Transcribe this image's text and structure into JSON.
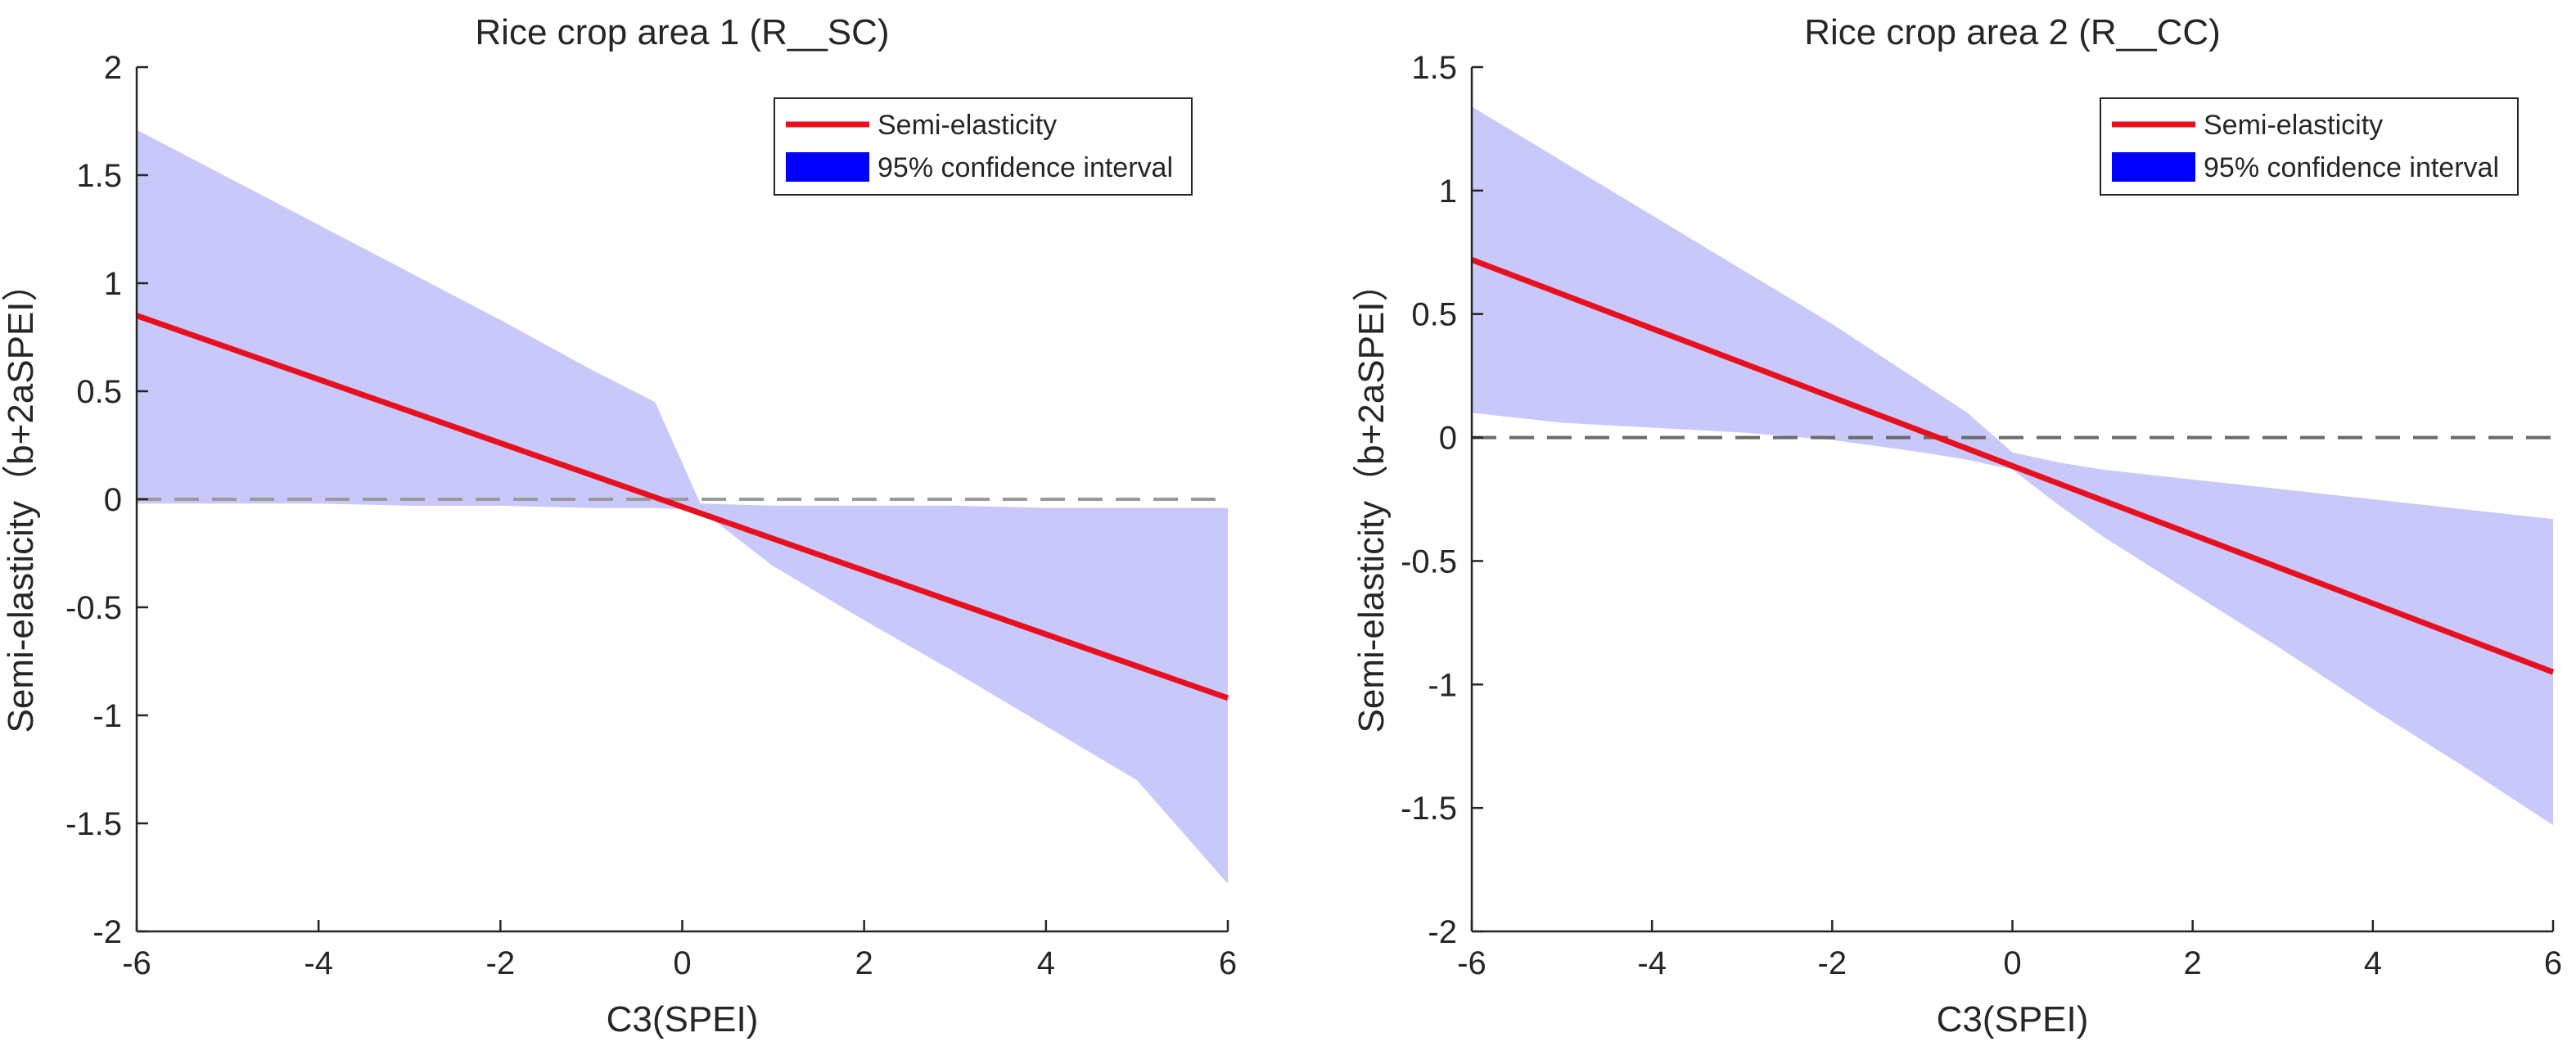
{
  "chart_data": [
    {
      "type": "line",
      "title": "Rice crop area 1 (R__SC)",
      "xlabel": "C3(SPEI)",
      "ylabel": "Semi-elasticity（b+2aSPEI）",
      "xlim": [
        -6,
        6
      ],
      "ylim": [
        -2,
        2
      ],
      "xticks": [
        -6,
        -4,
        -2,
        0,
        2,
        4,
        6
      ],
      "yticks": [
        -2,
        -1.5,
        -1,
        -0.5,
        0,
        0.5,
        1,
        1.5,
        2
      ],
      "xtick_labels": [
        "-6",
        "-4",
        "-2",
        "0",
        "2",
        "4",
        "6"
      ],
      "ytick_labels": [
        "-2",
        "-1.5",
        "-1",
        "-0.5",
        "0",
        "0.5",
        "1",
        "1.5",
        "2"
      ],
      "legend_position": "top-right",
      "series": [
        {
          "name": "Semi-elasticity",
          "kind": "line",
          "color": "#e8101e",
          "x": [
            -6,
            6
          ],
          "y": [
            0.85,
            -0.92
          ]
        },
        {
          "name": "95% confidence interval",
          "kind": "band",
          "color": "#0000ff",
          "fill": "#c8c8fb",
          "x": [
            -6,
            -5,
            -4,
            -3,
            -2,
            -1,
            -0.3,
            0.2,
            1,
            2,
            3,
            4,
            5,
            6
          ],
          "upper": [
            1.71,
            1.49,
            1.27,
            1.05,
            0.83,
            0.6,
            0.45,
            -0.02,
            -0.03,
            -0.03,
            -0.03,
            -0.04,
            -0.04,
            -0.04
          ],
          "lower": [
            -0.02,
            -0.02,
            -0.02,
            -0.03,
            -0.03,
            -0.04,
            -0.04,
            -0.05,
            -0.31,
            -0.56,
            -0.8,
            -1.05,
            -1.3,
            -1.78
          ]
        }
      ],
      "reference_line": {
        "y": 0,
        "style": "dashed",
        "color": "#9a9a9a"
      }
    },
    {
      "type": "line",
      "title": "Rice crop area 2 (R__CC)",
      "xlabel": "C3(SPEI)",
      "ylabel": "Semi-elasticity（b+2aSPEI）",
      "xlim": [
        -6,
        6
      ],
      "ylim": [
        -2,
        1.5
      ],
      "xticks": [
        -6,
        -4,
        -2,
        0,
        2,
        4,
        6
      ],
      "yticks": [
        -2,
        -1.5,
        -1,
        -0.5,
        0,
        0.5,
        1,
        1.5
      ],
      "xtick_labels": [
        "-6",
        "-4",
        "-2",
        "0",
        "2",
        "4",
        "6"
      ],
      "ytick_labels": [
        "-2",
        "-1.5",
        "-1",
        "-0.5",
        "0",
        "0.5",
        "1",
        "1.5"
      ],
      "legend_position": "top-right",
      "series": [
        {
          "name": "Semi-elasticity",
          "kind": "line",
          "color": "#e8101e",
          "x": [
            -6,
            6
          ],
          "y": [
            0.72,
            -0.95
          ]
        },
        {
          "name": "95% confidence interval",
          "kind": "band",
          "color": "#0000ff",
          "fill": "#c8c8fb",
          "x": [
            -6,
            -5,
            -4,
            -3,
            -2,
            -1,
            -0.5,
            0,
            0.5,
            1,
            2,
            3,
            4,
            5,
            6
          ],
          "upper": [
            1.34,
            1.12,
            0.9,
            0.68,
            0.46,
            0.22,
            0.1,
            -0.06,
            -0.1,
            -0.13,
            -0.17,
            -0.21,
            -0.25,
            -0.29,
            -0.33
          ],
          "lower": [
            0.1,
            0.06,
            0.04,
            0.02,
            -0.01,
            -0.06,
            -0.09,
            -0.13,
            -0.27,
            -0.4,
            -0.63,
            -0.86,
            -1.1,
            -1.33,
            -1.57
          ]
        }
      ],
      "reference_line": {
        "y": 0,
        "style": "dashed",
        "color": "#6a6a6a"
      }
    }
  ]
}
